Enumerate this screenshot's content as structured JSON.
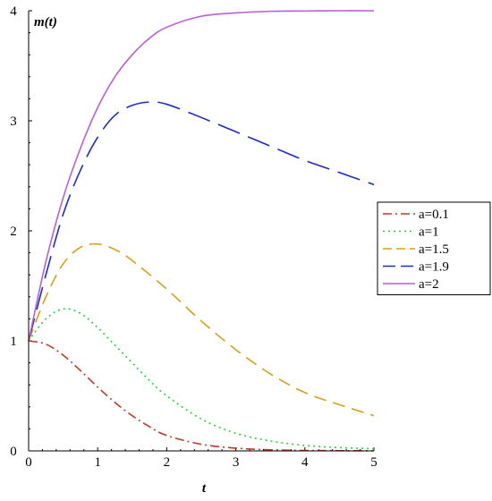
{
  "chart_data": {
    "type": "line",
    "title": "",
    "xlabel": "t",
    "ylabel": "m(t)",
    "xlim": [
      0,
      5
    ],
    "ylim": [
      0,
      4
    ],
    "xticks": [
      "0",
      "1",
      "2",
      "3",
      "4",
      "5"
    ],
    "yticks": [
      "0",
      "1",
      "2",
      "3",
      "4"
    ],
    "grid": false,
    "legend_position": "right",
    "series": [
      {
        "name": "a=0.1",
        "color": "#c0392b",
        "style": "dashdot",
        "x": [
          0,
          0.25,
          0.5,
          0.75,
          1,
          1.25,
          1.5,
          1.75,
          2,
          2.5,
          3,
          3.5,
          4,
          4.5,
          5
        ],
        "y": [
          1.0,
          0.97,
          0.87,
          0.73,
          0.58,
          0.44,
          0.32,
          0.22,
          0.14,
          0.06,
          0.025,
          0.01,
          0.004,
          0.002,
          0.001
        ]
      },
      {
        "name": "a=1",
        "color": "#2ecc40",
        "style": "dotted",
        "x": [
          0,
          0.25,
          0.5,
          0.75,
          1,
          1.25,
          1.5,
          1.75,
          2,
          2.5,
          3,
          3.5,
          4,
          4.5,
          5
        ],
        "y": [
          1.0,
          1.2,
          1.29,
          1.25,
          1.12,
          0.96,
          0.8,
          0.64,
          0.5,
          0.29,
          0.16,
          0.09,
          0.05,
          0.03,
          0.02
        ]
      },
      {
        "name": "a=1.5",
        "color": "#d4a017",
        "style": "dashed",
        "x": [
          0,
          0.25,
          0.5,
          0.75,
          1,
          1.25,
          1.5,
          2,
          2.5,
          3,
          3.5,
          4,
          4.5,
          5
        ],
        "y": [
          1.0,
          1.4,
          1.7,
          1.85,
          1.88,
          1.83,
          1.73,
          1.47,
          1.18,
          0.92,
          0.7,
          0.53,
          0.42,
          0.32
        ]
      },
      {
        "name": "a=1.9",
        "color": "#1d2bc9",
        "style": "longdash",
        "x": [
          0,
          0.25,
          0.5,
          0.75,
          1,
          1.25,
          1.5,
          1.75,
          2,
          2.5,
          3,
          3.5,
          4,
          4.5,
          5
        ],
        "y": [
          1.0,
          1.6,
          2.15,
          2.55,
          2.85,
          3.05,
          3.14,
          3.17,
          3.15,
          3.03,
          2.9,
          2.77,
          2.64,
          2.53,
          2.42
        ]
      },
      {
        "name": "a=2",
        "color": "#b75fd6",
        "style": "solid",
        "x": [
          0,
          0.25,
          0.5,
          0.75,
          1,
          1.25,
          1.5,
          1.75,
          2,
          2.5,
          3,
          3.5,
          4,
          4.5,
          5
        ],
        "y": [
          1.0,
          1.72,
          2.3,
          2.75,
          3.12,
          3.4,
          3.6,
          3.75,
          3.85,
          3.95,
          3.98,
          3.995,
          3.998,
          4.0,
          4.0
        ]
      }
    ]
  }
}
